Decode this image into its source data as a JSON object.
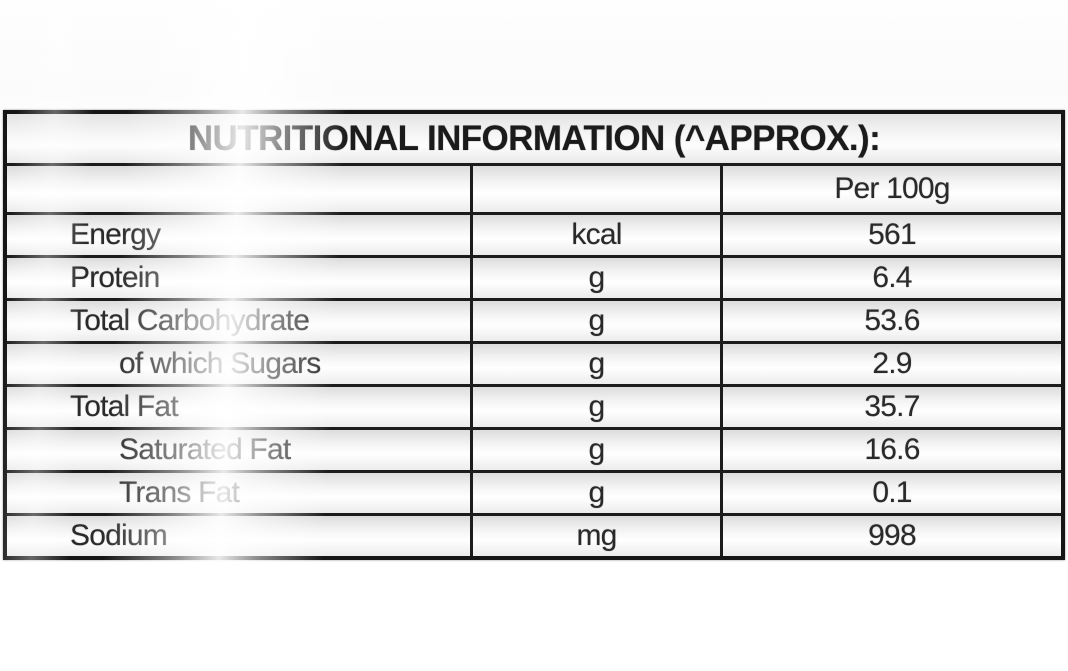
{
  "label": {
    "title": "NUTRITIONAL INFORMATION (^APPROX.):",
    "columns": {
      "nutrient": "",
      "unit": "",
      "per": "Per 100g"
    },
    "rows": [
      {
        "nutrient": "Energy",
        "unit": "kcal",
        "value": "561",
        "indent": false
      },
      {
        "nutrient": "Protein",
        "unit": "g",
        "value": "6.4",
        "indent": false
      },
      {
        "nutrient": "Total Carbohydrate",
        "unit": "g",
        "value": "53.6",
        "indent": false
      },
      {
        "nutrient": "of which Sugars",
        "unit": "g",
        "value": "2.9",
        "indent": true
      },
      {
        "nutrient": "Total Fat",
        "unit": "g",
        "value": "35.7",
        "indent": false
      },
      {
        "nutrient": "Saturated Fat",
        "unit": "g",
        "value": "16.6",
        "indent": true
      },
      {
        "nutrient": "Trans Fat",
        "unit": "g",
        "value": "0.1",
        "indent": true
      },
      {
        "nutrient": "Sodium",
        "unit": "mg",
        "value": "998",
        "indent": false
      }
    ],
    "colors": {
      "border": "#1c1c1c",
      "text": "#2a2a2a",
      "cell_bg_light": "#ffffff",
      "cell_bg_gray": "#dcdcdc"
    }
  }
}
